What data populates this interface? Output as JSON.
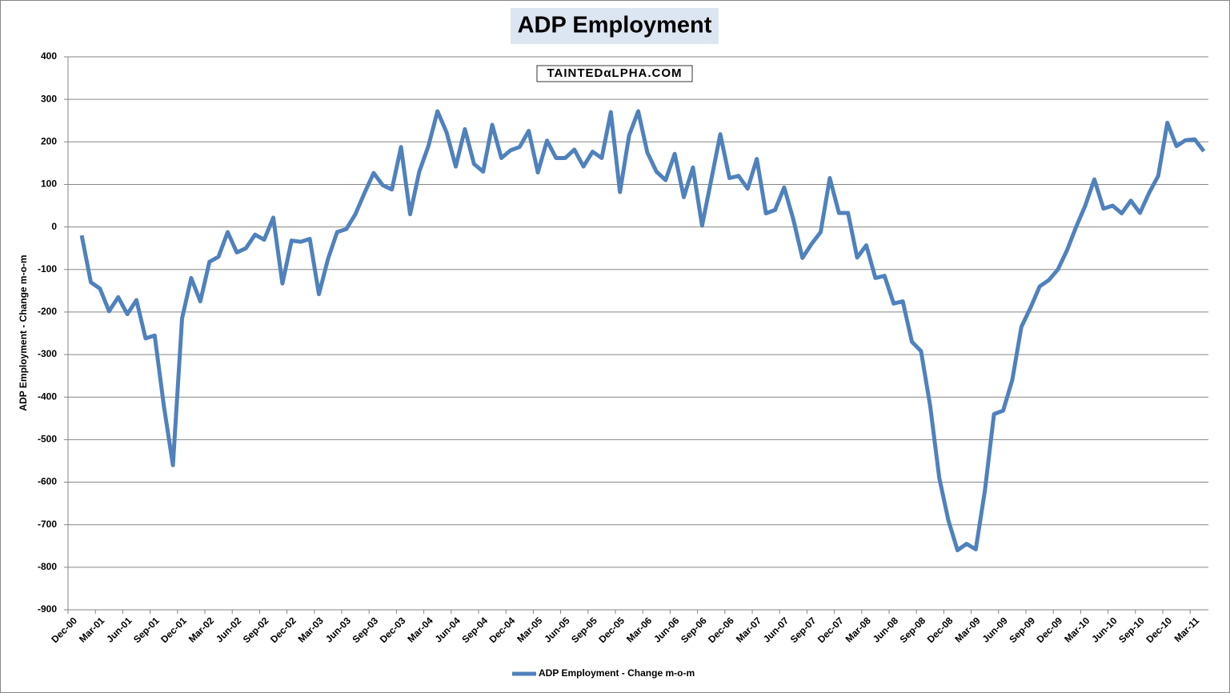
{
  "chart_data": {
    "type": "line",
    "title": "ADP Employment",
    "watermark": "TAINTEDαLPHA.COM",
    "y_label": "ADP Employment - Change m-o-m",
    "ylim": [
      -900,
      400
    ],
    "yticks": [
      -900,
      -800,
      -700,
      -600,
      -500,
      -400,
      -300,
      -200,
      -100,
      0,
      100,
      200,
      300,
      400
    ],
    "grid": true,
    "legend": "bottom",
    "categories": [
      "Dec-00",
      null,
      null,
      "Mar-01",
      null,
      null,
      "Jun-01",
      null,
      null,
      "Sep-01",
      null,
      null,
      "Dec-01",
      null,
      null,
      "Mar-02",
      null,
      null,
      "Jun-02",
      null,
      null,
      "Sep-02",
      null,
      null,
      "Dec-02",
      null,
      null,
      "Mar-03",
      null,
      null,
      "Jun-03",
      null,
      null,
      "Sep-03",
      null,
      null,
      "Dec-03",
      null,
      null,
      "Mar-04",
      null,
      null,
      "Jun-04",
      null,
      null,
      "Sep-04",
      null,
      null,
      "Dec-04",
      null,
      null,
      "Mar-05",
      null,
      null,
      "Jun-05",
      null,
      null,
      "Sep-05",
      null,
      null,
      "Dec-05",
      null,
      null,
      "Mar-06",
      null,
      null,
      "Jun-06",
      null,
      null,
      "Sep-06",
      null,
      null,
      "Dec-06",
      null,
      null,
      "Mar-07",
      null,
      null,
      "Jun-07",
      null,
      null,
      "Sep-07",
      null,
      null,
      "Dec-07",
      null,
      null,
      "Mar-08",
      null,
      null,
      "Jun-08",
      null,
      null,
      "Sep-08",
      null,
      null,
      "Dec-08",
      null,
      null,
      "Mar-09",
      null,
      null,
      "Jun-09",
      null,
      null,
      "Sep-09",
      null,
      null,
      "Dec-09",
      null,
      null,
      "Mar-10",
      null,
      null,
      "Jun-10",
      null,
      null,
      "Sep-10",
      null,
      null,
      "Dec-10",
      null,
      null,
      "Mar-11",
      null
    ],
    "series": [
      {
        "name": "ADP Employment - Change m-o-m",
        "color": "#4f81bd",
        "values": [
          null,
          -20,
          -130,
          -145,
          -198,
          -165,
          -205,
          -172,
          -262,
          -255,
          -420,
          -560,
          -215,
          -120,
          -175,
          -82,
          -70,
          -12,
          -60,
          -50,
          -18,
          -30,
          22,
          -133,
          -32,
          -35,
          -28,
          -158,
          -75,
          -12,
          -5,
          30,
          80,
          127,
          98,
          88,
          188,
          30,
          130,
          190,
          272,
          222,
          142,
          230,
          148,
          130,
          240,
          162,
          180,
          188,
          226,
          128,
          203,
          162,
          162,
          182,
          142,
          177,
          162,
          270,
          82,
          215,
          272,
          175,
          130,
          110,
          172,
          70,
          140,
          3,
          110,
          218,
          115,
          120,
          90,
          160,
          32,
          40,
          93,
          18,
          -73,
          -40,
          -12,
          115,
          33,
          33,
          -72,
          -43,
          -120,
          -115,
          -180,
          -175,
          -270,
          -292,
          -420,
          -590,
          -690,
          -760,
          -745,
          -758,
          -620,
          -440,
          -432,
          -360,
          -235,
          -190,
          -140,
          -125,
          -100,
          -55,
          0,
          50,
          112,
          43,
          50,
          32,
          62,
          33,
          80,
          120,
          245,
          190,
          204,
          206,
          178
        ]
      }
    ]
  }
}
